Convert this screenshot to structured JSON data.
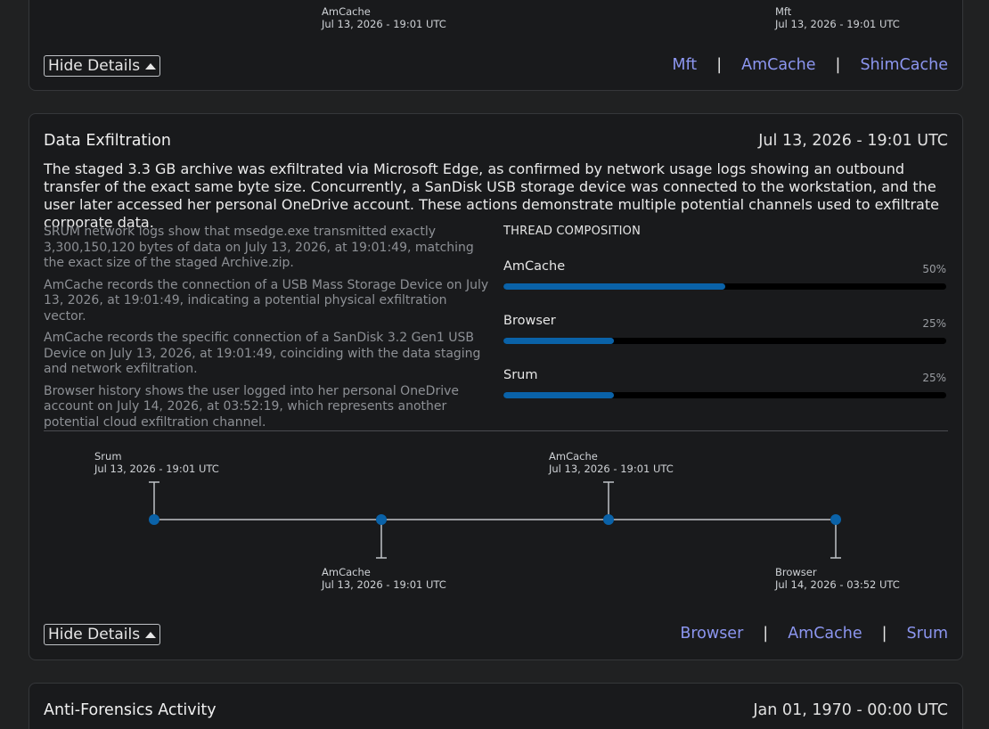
{
  "top_card": {
    "timeline": [
      {
        "source": "AmCache",
        "time": "Jul 13, 2026 - 19:01 UTC"
      },
      {
        "source": "Mft",
        "time": "Jul 13, 2026 - 19:01 UTC"
      }
    ],
    "hide_details_label": "Hide Details",
    "links": [
      "Mft",
      "AmCache",
      "ShimCache"
    ],
    "separator": "|"
  },
  "main_card": {
    "title": "Data Exfiltration",
    "date": "Jul 13, 2026 - 19:01 UTC",
    "summary": "The staged 3.3 GB archive was exfiltrated via Microsoft Edge, as confirmed by network usage logs showing an outbound transfer of the exact same byte size. Concurrently, a SanDisk USB storage device was connected to the workstation, and the user later accessed her personal OneDrive account. These actions demonstrate multiple potential channels used to exfiltrate corporate data.",
    "findings": [
      "SRUM network logs show that msedge.exe transmitted exactly 3,300,150,120 bytes of data on July 13, 2026, at 19:01:49, matching the exact size of the staged Archive.zip.",
      "AmCache records the connection of a USB Mass Storage Device on July 13, 2026, at 19:01:49, indicating a potential physical exfiltration vector.",
      "AmCache records the specific connection of a SanDisk 3.2 Gen1 USB Device on July 13, 2026, at 19:01:49, coinciding with the data staging and network exfiltration.",
      "Browser history shows the user logged into her personal OneDrive account on July 14, 2026, at 03:52:19, which represents another potential cloud exfiltration channel."
    ],
    "thread_composition": {
      "title": "THREAD COMPOSITION",
      "items": [
        {
          "name": "AmCache",
          "percent_label": "50%",
          "percent": 50
        },
        {
          "name": "Browser",
          "percent_label": "25%",
          "percent": 25
        },
        {
          "name": "Srum",
          "percent_label": "25%",
          "percent": 25
        }
      ]
    },
    "timeline": [
      {
        "source": "Srum",
        "time": "Jul 13, 2026 - 19:01 UTC"
      },
      {
        "source": "AmCache",
        "time": "Jul 13, 2026 - 19:01 UTC"
      },
      {
        "source": "AmCache",
        "time": "Jul 13, 2026 - 19:01 UTC"
      },
      {
        "source": "Browser",
        "time": "Jul 14, 2026 - 03:52 UTC"
      }
    ],
    "hide_details_label": "Hide Details",
    "links": [
      "Browser",
      "AmCache",
      "Srum"
    ],
    "separator": "|"
  },
  "bottom_card": {
    "title": "Anti-Forensics Activity",
    "date": "Jan 01, 1970 - 00:00 UTC"
  },
  "colors": {
    "accent_link": "#8c96f0",
    "bar_fill": "#0a62a8",
    "timeline_dot": "#0a62a8"
  }
}
